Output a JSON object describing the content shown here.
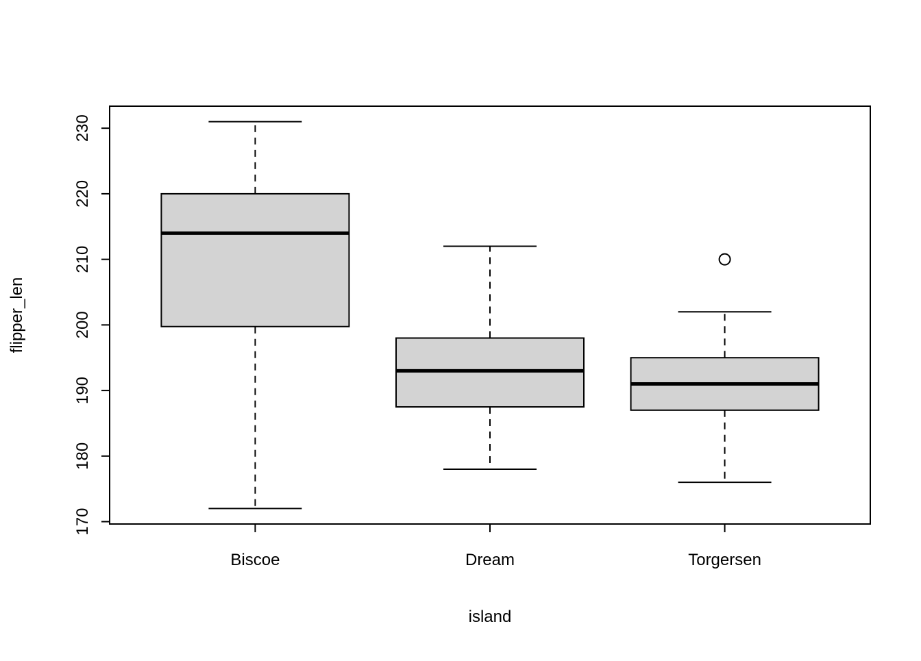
{
  "chart_data": {
    "type": "boxplot",
    "title": "",
    "xlabel": "island",
    "ylabel": "flipper_len",
    "categories": [
      "Biscoe",
      "Dream",
      "Torgersen"
    ],
    "series": [
      {
        "name": "Biscoe",
        "min": 172,
        "q1": 199.75,
        "median": 214,
        "q3": 220,
        "max": 231,
        "outliers": []
      },
      {
        "name": "Dream",
        "min": 178,
        "q1": 187.5,
        "median": 193,
        "q3": 198,
        "max": 212,
        "outliers": []
      },
      {
        "name": "Torgersen",
        "min": 176,
        "q1": 187,
        "median": 191,
        "q3": 195,
        "max": 202,
        "outliers": [
          210
        ]
      }
    ],
    "yticks": [
      170,
      180,
      190,
      200,
      210,
      220,
      230
    ],
    "ylim": [
      169.64,
      233.36
    ],
    "grid": "off",
    "legend": "none",
    "box_fill": "#d3d3d3",
    "stroke_color": "#000000",
    "background": "#ffffff"
  }
}
